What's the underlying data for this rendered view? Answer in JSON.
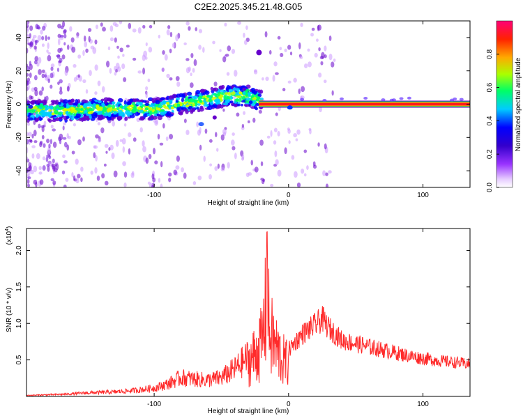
{
  "figure": {
    "title": "C2E2.2025.345.21.48.G05"
  },
  "chart_data": [
    {
      "type": "heatmap",
      "name": "spectrogram",
      "xlabel": "Height of straight line (km)",
      "ylabel": "Frequency (Hz)",
      "xlim": [
        -195,
        135
      ],
      "ylim": [
        -50,
        50
      ],
      "xticks": [
        -100,
        0,
        100
      ],
      "yticks": [
        -40,
        -20,
        0,
        20,
        40
      ],
      "colorbar": {
        "label": "Normalized spectral amplitude",
        "range": [
          0,
          1
        ],
        "ticks": [
          "0.0",
          "0.2",
          "0.4",
          "0.6",
          "0.8"
        ],
        "tick_values": [
          0.0,
          0.2,
          0.4,
          0.6,
          0.8
        ],
        "colors": [
          "#ffffff",
          "#cc99ff",
          "#6600cc",
          "#0000ff",
          "#00ccff",
          "#00ff66",
          "#ccff00",
          "#ffaa00",
          "#ff2200",
          "#ff0066"
        ]
      },
      "ridge": {
        "description_values": "dominant frequency (Hz) vs height (km)",
        "points": [
          [
            -195,
            -4
          ],
          [
            -170,
            -4
          ],
          [
            -140,
            -3
          ],
          [
            -120,
            -3
          ],
          [
            -100,
            -3
          ],
          [
            -80,
            0
          ],
          [
            -60,
            3
          ],
          [
            -45,
            5
          ],
          [
            -30,
            5
          ],
          [
            -22,
            2
          ],
          [
            -10,
            0
          ],
          [
            0,
            -1
          ],
          [
            5,
            0
          ],
          [
            40,
            0
          ],
          [
            100,
            0
          ],
          [
            135,
            0
          ]
        ]
      }
    },
    {
      "type": "line",
      "name": "snr",
      "xlabel": "Height of straight line (km)",
      "ylabel": "SNR (10 * v/v)",
      "scale_label": "(x10",
      "scale_exp": "4",
      "scale_close": ")",
      "xlim": [
        -195,
        135
      ],
      "ylim": [
        0,
        2.3
      ],
      "xticks": [
        -100,
        0,
        100
      ],
      "yticks": [
        0.5,
        1.0,
        1.5,
        2.0
      ],
      "ytick_labels": [
        "0.5",
        "1.0",
        "1.5",
        "2.0"
      ],
      "series": [
        {
          "name": "SNR",
          "color": "#ff2a2a",
          "envelope": [
            [
              -195,
              0.02
            ],
            [
              -170,
              0.04
            ],
            [
              -150,
              0.07
            ],
            [
              -130,
              0.09
            ],
            [
              -115,
              0.12
            ],
            [
              -100,
              0.17
            ],
            [
              -90,
              0.25
            ],
            [
              -80,
              0.38
            ],
            [
              -70,
              0.35
            ],
            [
              -60,
              0.33
            ],
            [
              -50,
              0.38
            ],
            [
              -40,
              0.55
            ],
            [
              -30,
              0.8
            ],
            [
              -25,
              1.0
            ],
            [
              -20,
              1.25
            ],
            [
              -16,
              2.3
            ],
            [
              -14,
              1.5
            ],
            [
              -10,
              1.2
            ],
            [
              -5,
              0.9
            ],
            [
              0,
              0.75
            ],
            [
              10,
              1.0
            ],
            [
              20,
              1.15
            ],
            [
              25,
              1.25
            ],
            [
              30,
              1.1
            ],
            [
              40,
              0.9
            ],
            [
              50,
              0.85
            ],
            [
              70,
              0.75
            ],
            [
              90,
              0.65
            ],
            [
              110,
              0.58
            ],
            [
              135,
              0.52
            ]
          ]
        }
      ]
    }
  ]
}
